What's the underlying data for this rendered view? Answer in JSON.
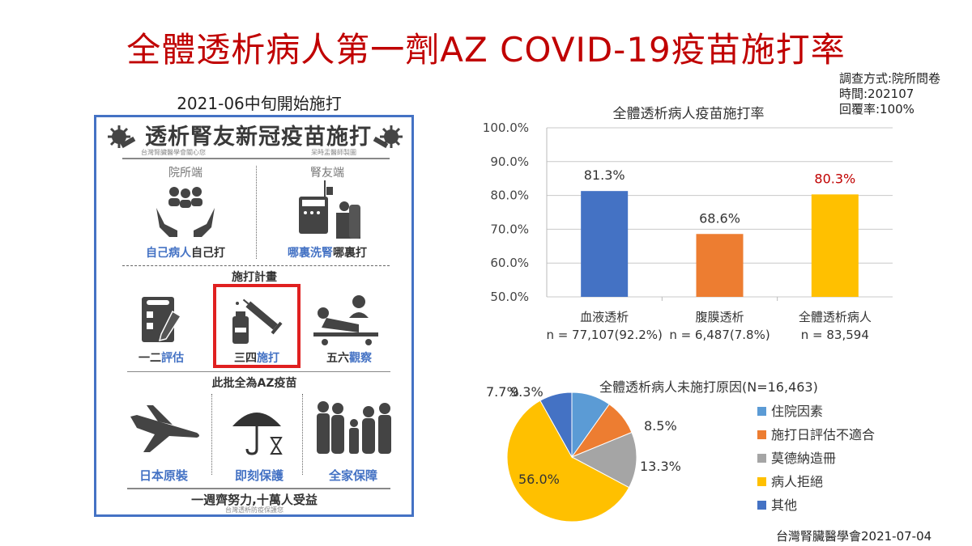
{
  "title": "全體透析病人第一劑AZ COVID-19疫苗施打率",
  "meta": {
    "method": "調查方式:院所問卷",
    "time": "時間:202107",
    "response": "回覆率:100%"
  },
  "infographic": {
    "caption": "2021-06中旬開始施打",
    "header": "透析腎友新冠疫苗施打",
    "credit_left": "台灣腎臟醫學會關心您",
    "credit_right": "呆時盂醫師製圖",
    "left_col_title": "院所端",
    "right_col_title": "腎友端",
    "left_col_caption_blue": "自己病人",
    "left_col_caption_dark": "自己打",
    "right_col_caption_blue": "哪裏洗腎",
    "right_col_caption_dark": "哪裏打",
    "plan_title": "施打計畫",
    "steps": [
      {
        "dark": "一二",
        "blue": "評估",
        "icon": "checklist-icon"
      },
      {
        "dark": "三四",
        "blue": "施打",
        "icon": "syringe-vial-icon"
      },
      {
        "dark": "五六",
        "blue": "觀察",
        "icon": "patient-bed-icon"
      }
    ],
    "batch_title": "此批全為AZ疫苗",
    "benefits": [
      {
        "label": "日本原裝",
        "icon": "airplane-icon"
      },
      {
        "label": "即刻保護",
        "icon": "umbrella-hourglass-icon"
      },
      {
        "label": "全家保障",
        "icon": "family-icon"
      }
    ],
    "slogan": "一週齊努力,十萬人受益",
    "slogan_sub": "台灣透析防疫保護您"
  },
  "footer": "台灣腎臟醫學會2021-07-04",
  "colors": {
    "title_red": "#c00000",
    "border_blue": "#4472c4",
    "bar_blue": "#4472c4",
    "bar_orange": "#ed7d31",
    "bar_yellow": "#ffc000",
    "pie_lightblue": "#5b9bd5",
    "pie_gray": "#a5a5a5"
  },
  "chart_data": [
    {
      "type": "bar",
      "title": "全體透析病人疫苗施打率",
      "categories": [
        "血液透析",
        "腹膜透析",
        "全體透析病人"
      ],
      "category_sublabels": [
        "n = 77,107(92.2%)",
        "n = 6,487(7.8%)",
        "n = 83,594"
      ],
      "values": [
        81.3,
        68.6,
        80.3
      ],
      "value_labels": [
        "81.3%",
        "68.6%",
        "80.3%"
      ],
      "bar_colors": [
        "#4472c4",
        "#ed7d31",
        "#ffc000"
      ],
      "ylim": [
        50,
        100
      ],
      "yticks": [
        "50.0%",
        "60.0%",
        "70.0%",
        "80.0%",
        "90.0%",
        "100.0%"
      ],
      "grid": true,
      "xlabel": "",
      "ylabel": ""
    },
    {
      "type": "pie",
      "title": "全體透析病人未施打原因(N=16,463)",
      "labels": [
        "住院因素",
        "施打日評估不適合",
        "莫德納造冊",
        "病人拒絕",
        "其他"
      ],
      "values": [
        9.3,
        8.5,
        13.3,
        56.0,
        7.7
      ],
      "value_labels": [
        "9.3%",
        "8.5%",
        "13.3%",
        "56.0%",
        "7.7%"
      ],
      "colors": [
        "#5b9bd5",
        "#ed7d31",
        "#a5a5a5",
        "#ffc000",
        "#4472c4"
      ],
      "legend_position": "right"
    }
  ]
}
